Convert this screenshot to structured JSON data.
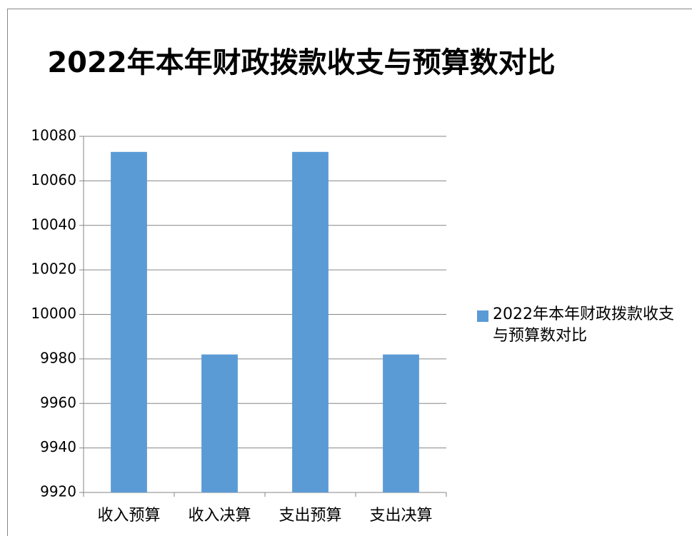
{
  "chart_data": {
    "type": "bar",
    "title": "2022年本年财政拨款收支与预算数对比",
    "categories": [
      "收入预算",
      "收入决算",
      "支出预算",
      "支出决算"
    ],
    "series": [
      {
        "name": "2022年本年财政拨款收支与预算数对比",
        "color": "#5b9bd5",
        "values": [
          10073,
          9982,
          10073,
          9982
        ]
      }
    ],
    "ylim": [
      9920,
      10080
    ],
    "yticks": [
      9920,
      9940,
      9960,
      9980,
      10000,
      10020,
      10040,
      10060,
      10080
    ],
    "grid": true,
    "legend": "right"
  }
}
